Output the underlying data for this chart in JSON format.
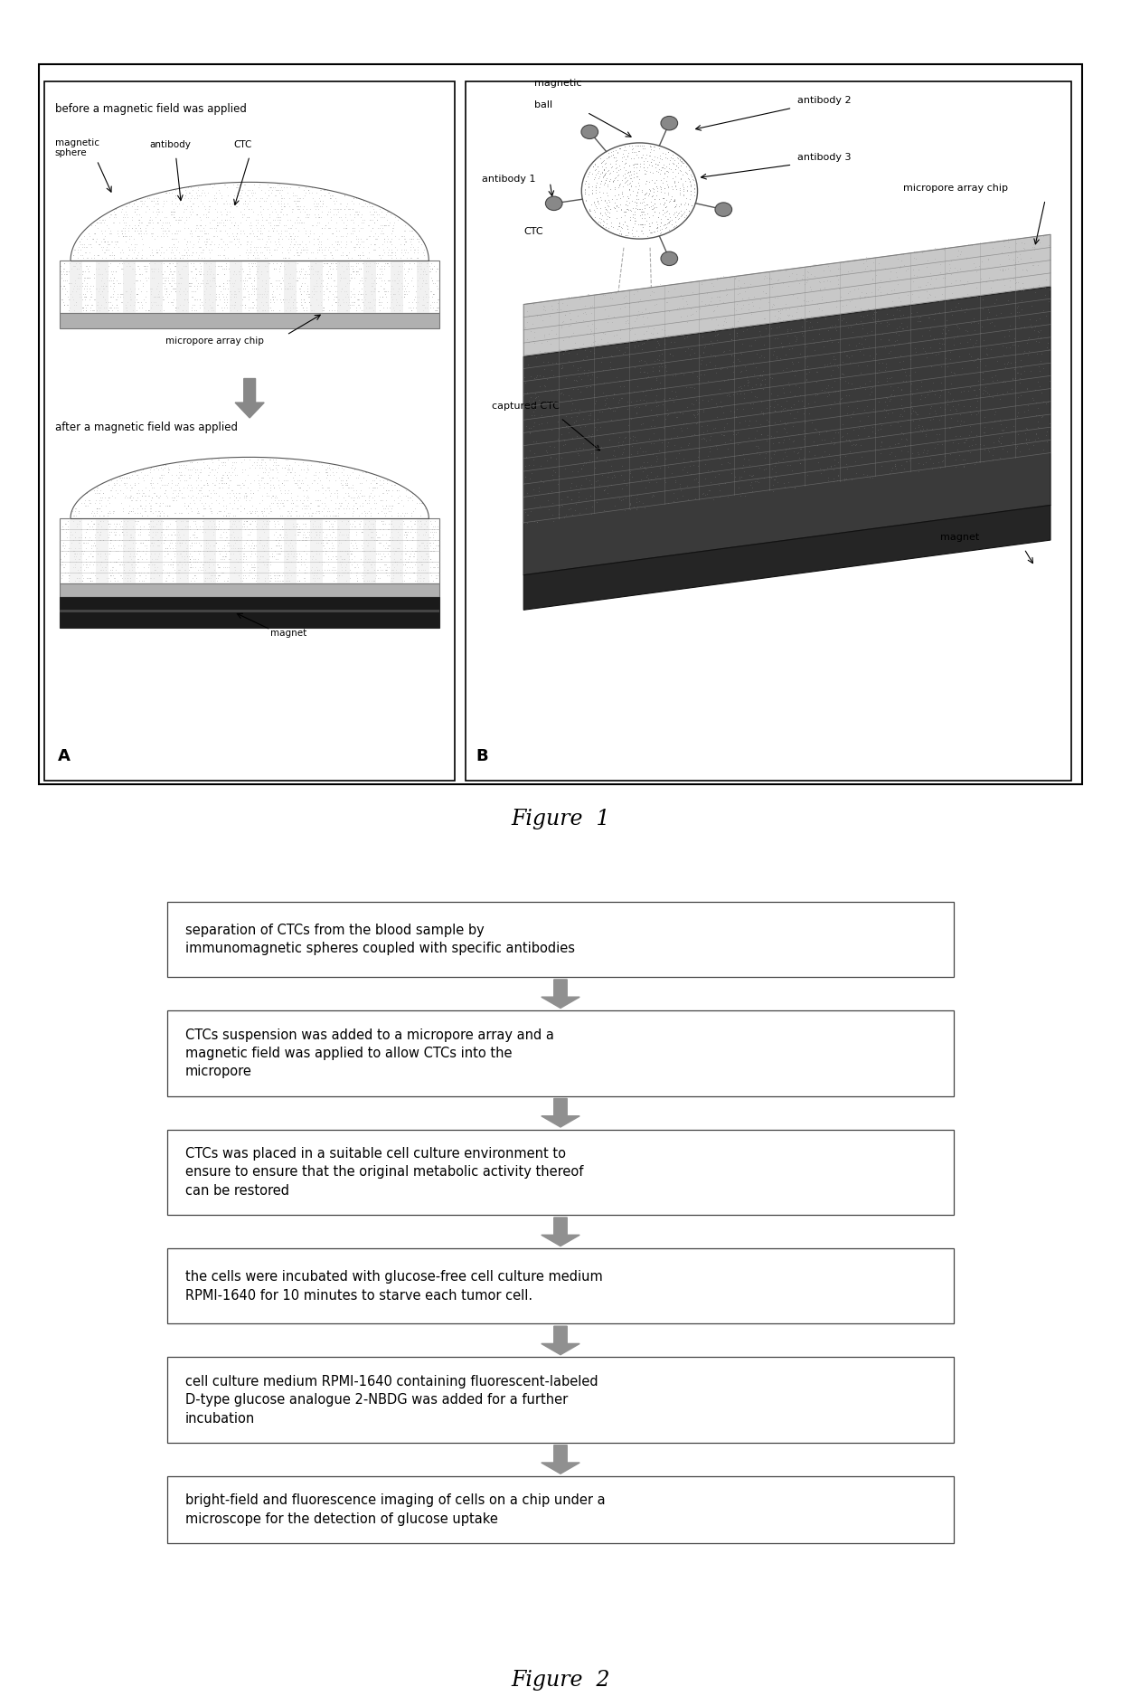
{
  "figure1_caption": "Figure  1",
  "figure2_caption": "Figure  2",
  "flowchart_steps": [
    "separation of CTCs from the blood sample by\nimmunomagnetic spheres coupled with specific antibodies",
    "CTCs suspension was added to a micropore array and a\nmagnetic field was applied to allow CTCs into the\nmicropore",
    "CTCs was placed in a suitable cell culture environment to\nensure to ensure that the original metabolic activity thereof\ncan be restored",
    "the cells were incubated with glucose-free cell culture medium\nRPMI-1640 for 10 minutes to starve each tumor cell.",
    "cell culture medium RPMI-1640 containing fluorescent-labeled\nD-type glucose analogue 2-NBDG was added for a further\nincubation",
    "bright-field and fluorescence imaging of cells on a chip under a\nmicroscope for the detection of glucose uptake"
  ],
  "bg_color": "#ffffff",
  "box_color": "#ffffff",
  "box_edge_color": "#444444",
  "arrow_color": "#888888",
  "text_color": "#000000",
  "font_size_box": 10.5,
  "font_size_caption": 17,
  "font_size_label": 9
}
